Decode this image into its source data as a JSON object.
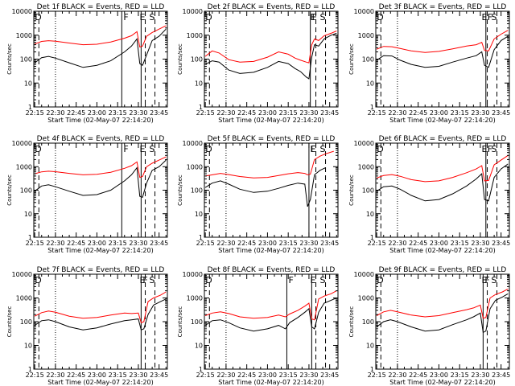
{
  "figure": {
    "xlabel": "Start Time (02-May-07 22:14:20)",
    "ylabel": "Counts/sec",
    "y_scale": "log",
    "ylim": [
      1,
      10000
    ],
    "xlim": [
      "22:14:20",
      "23:51:00"
    ],
    "x_ticks": [
      "22:15",
      "22:30",
      "22:45",
      "23:00",
      "23:15",
      "23:30",
      "23:45"
    ],
    "y_ticks": [
      "1",
      "10",
      "100",
      "1000",
      "10000"
    ],
    "colors": {
      "events": "#000000",
      "lld": "#ff0000"
    },
    "time_markers": {
      "dashed_times": [
        "22:18",
        "23:35",
        "23:42"
      ],
      "dotted_time": "22:30",
      "letters_top": [
        "F",
        "E",
        "S"
      ],
      "letter_bottom": "D"
    }
  },
  "chart_data": [
    {
      "type": "line",
      "title": "Det 1f BLACK = Events, RED = LLD",
      "solid_times": [
        "23:18",
        "23:32"
      ],
      "events_x": [
        "22:15",
        "22:20",
        "22:25",
        "22:30",
        "22:40",
        "22:50",
        "23:00",
        "23:10",
        "23:20",
        "23:25",
        "23:29",
        "23:31",
        "23:33",
        "23:36",
        "23:40",
        "23:45",
        "23:50"
      ],
      "events_y": [
        70,
        115,
        130,
        110,
        70,
        45,
        55,
        85,
        200,
        350,
        700,
        65,
        55,
        150,
        600,
        900,
        1800
      ],
      "lld_x": [
        "22:15",
        "22:20",
        "22:25",
        "22:30",
        "22:40",
        "22:50",
        "23:00",
        "23:10",
        "23:20",
        "23:25",
        "23:29",
        "23:31",
        "23:33",
        "23:36",
        "23:40",
        "23:45",
        "23:50"
      ],
      "lld_y": [
        430,
        550,
        590,
        560,
        470,
        400,
        420,
        520,
        750,
        950,
        1400,
        320,
        350,
        900,
        1300,
        1800,
        2500
      ]
    },
    {
      "type": "line",
      "title": "Det 2f BLACK = Events, RED = LLD",
      "solid_times": [
        "23:31"
      ],
      "events_x": [
        "22:15",
        "22:20",
        "22:25",
        "22:32",
        "22:40",
        "22:50",
        "23:00",
        "23:08",
        "23:15",
        "23:20",
        "23:24",
        "23:28",
        "23:30",
        "23:32",
        "23:34",
        "23:37",
        "23:41",
        "23:46",
        "23:50"
      ],
      "events_y": [
        60,
        85,
        75,
        35,
        25,
        28,
        45,
        80,
        65,
        40,
        30,
        18,
        15,
        120,
        400,
        350,
        700,
        1000,
        1200
      ],
      "lld_x": [
        "22:15",
        "22:20",
        "22:25",
        "22:32",
        "22:40",
        "22:50",
        "23:00",
        "23:08",
        "23:15",
        "23:20",
        "23:24",
        "23:28",
        "23:30",
        "23:32",
        "23:34",
        "23:37",
        "23:41",
        "23:46",
        "23:50"
      ],
      "lld_y": [
        130,
        220,
        180,
        95,
        75,
        80,
        120,
        200,
        160,
        110,
        90,
        75,
        70,
        400,
        700,
        600,
        950,
        1200,
        1500
      ]
    },
    {
      "type": "line",
      "title": "Det 3f BLACK = Events, RED = LLD",
      "solid_times": [
        "23:34"
      ],
      "events_x": [
        "22:15",
        "22:20",
        "22:26",
        "22:32",
        "22:40",
        "22:50",
        "23:00",
        "23:10",
        "23:20",
        "23:27",
        "23:31",
        "23:33",
        "23:36",
        "23:40",
        "23:45",
        "23:50"
      ],
      "events_y": [
        90,
        140,
        135,
        90,
        60,
        45,
        50,
        75,
        110,
        140,
        200,
        55,
        45,
        250,
        600,
        900
      ],
      "lld_x": [
        "22:15",
        "22:20",
        "22:26",
        "22:32",
        "22:40",
        "22:50",
        "23:00",
        "23:10",
        "23:20",
        "23:27",
        "23:31",
        "23:33",
        "23:36",
        "23:40",
        "23:45",
        "23:50"
      ],
      "lld_y": [
        260,
        340,
        330,
        280,
        220,
        190,
        210,
        270,
        350,
        400,
        500,
        230,
        220,
        700,
        1100,
        1600
      ]
    },
    {
      "type": "line",
      "title": "Det 4f BLACK = Events, RED = LLD",
      "solid_times": [
        "23:18",
        "23:32"
      ],
      "events_x": [
        "22:15",
        "22:20",
        "22:25",
        "22:30",
        "22:40",
        "22:50",
        "23:00",
        "23:10",
        "23:20",
        "23:25",
        "23:29",
        "23:31",
        "23:33",
        "23:36",
        "23:40",
        "23:45",
        "23:50"
      ],
      "events_y": [
        90,
        150,
        170,
        140,
        90,
        60,
        65,
        100,
        250,
        450,
        900,
        55,
        50,
        200,
        700,
        1000,
        1900
      ],
      "lld_x": [
        "22:15",
        "22:20",
        "22:25",
        "22:30",
        "22:40",
        "22:50",
        "23:00",
        "23:10",
        "23:20",
        "23:25",
        "23:29",
        "23:31",
        "23:33",
        "23:36",
        "23:40",
        "23:45",
        "23:50"
      ],
      "lld_y": [
        500,
        600,
        640,
        610,
        520,
        450,
        470,
        580,
        850,
        1100,
        1600,
        350,
        380,
        1000,
        1400,
        1900,
        2600
      ]
    },
    {
      "type": "line",
      "title": "Det 5f BLACK = Events, RED = LLD",
      "solid_times": [
        "23:30"
      ],
      "events_x": [
        "22:15",
        "22:20",
        "22:26",
        "22:32",
        "22:40",
        "22:50",
        "23:00",
        "23:08",
        "23:15",
        "23:22",
        "23:27",
        "23:29",
        "23:31",
        "23:34",
        "23:38",
        "23:42"
      ],
      "events_y": [
        130,
        200,
        250,
        180,
        110,
        80,
        90,
        120,
        160,
        200,
        180,
        20,
        40,
        450,
        700,
        900
      ],
      "lld_x": [
        "22:15",
        "22:20",
        "22:26",
        "22:32",
        "22:40",
        "22:50",
        "23:00",
        "23:08",
        "23:15",
        "23:22",
        "23:27",
        "23:29",
        "23:31",
        "23:34",
        "23:38",
        "23:42",
        "23:48"
      ],
      "lld_y": [
        400,
        450,
        520,
        460,
        380,
        330,
        350,
        420,
        500,
        560,
        520,
        450,
        480,
        2000,
        2800,
        3500,
        4500
      ]
    },
    {
      "type": "line",
      "title": "Det 6f BLACK = Events, RED = LLD",
      "solid_times": [
        "23:34"
      ],
      "events_x": [
        "22:15",
        "22:20",
        "22:26",
        "22:32",
        "22:40",
        "22:50",
        "23:00",
        "23:10",
        "23:20",
        "23:27",
        "23:31",
        "23:33",
        "23:36",
        "23:40",
        "23:45",
        "23:50"
      ],
      "events_y": [
        90,
        140,
        150,
        110,
        60,
        35,
        40,
        70,
        150,
        300,
        500,
        40,
        35,
        350,
        800,
        1300
      ],
      "lld_x": [
        "22:15",
        "22:20",
        "22:26",
        "22:32",
        "22:40",
        "22:50",
        "23:00",
        "23:10",
        "23:20",
        "23:27",
        "23:31",
        "23:33",
        "23:36",
        "23:40",
        "23:45",
        "23:50"
      ],
      "lld_y": [
        330,
        420,
        460,
        390,
        280,
        230,
        250,
        350,
        550,
        800,
        1100,
        250,
        260,
        1200,
        1900,
        3000
      ]
    },
    {
      "type": "line",
      "title": "Det 7f BLACK = Events, RED = LLD",
      "solid_times": [
        "23:32"
      ],
      "events_x": [
        "22:15",
        "22:20",
        "22:25",
        "22:30",
        "22:40",
        "22:50",
        "23:00",
        "23:10",
        "23:20",
        "23:25",
        "23:30",
        "23:32",
        "23:34",
        "23:37",
        "23:41",
        "23:46",
        "23:50"
      ],
      "events_y": [
        70,
        110,
        120,
        100,
        60,
        45,
        55,
        80,
        110,
        120,
        130,
        45,
        50,
        200,
        500,
        700,
        900
      ],
      "lld_x": [
        "22:15",
        "22:20",
        "22:25",
        "22:30",
        "22:40",
        "22:50",
        "23:00",
        "23:10",
        "23:20",
        "23:25",
        "23:30",
        "23:32",
        "23:34",
        "23:37",
        "23:41",
        "23:46",
        "23:50"
      ],
      "lld_y": [
        170,
        240,
        280,
        250,
        170,
        140,
        150,
        190,
        230,
        220,
        230,
        90,
        100,
        700,
        1000,
        1300,
        1800
      ]
    },
    {
      "type": "line",
      "title": "Det 8f BLACK = Events, RED = LLD",
      "solid_times": [
        "23:14",
        "23:32"
      ],
      "events_x": [
        "22:15",
        "22:20",
        "22:26",
        "22:32",
        "22:40",
        "22:50",
        "23:00",
        "23:08",
        "23:13",
        "23:16",
        "23:22",
        "23:27",
        "23:30",
        "23:32",
        "23:34",
        "23:37",
        "23:41",
        "23:46",
        "23:50"
      ],
      "events_y": [
        70,
        110,
        120,
        90,
        55,
        40,
        50,
        70,
        50,
        90,
        150,
        250,
        350,
        60,
        50,
        250,
        600,
        800,
        1000
      ],
      "lld_x": [
        "22:15",
        "22:20",
        "22:26",
        "22:32",
        "22:40",
        "22:50",
        "23:00",
        "23:08",
        "23:13",
        "23:16",
        "23:22",
        "23:27",
        "23:30",
        "23:32",
        "23:34",
        "23:37",
        "23:41",
        "23:46",
        "23:50"
      ],
      "lld_y": [
        180,
        230,
        260,
        220,
        160,
        140,
        150,
        190,
        160,
        210,
        300,
        450,
        600,
        130,
        120,
        900,
        1200,
        1500,
        2000
      ]
    },
    {
      "type": "line",
      "title": "Det 9f BLACK = Events, RED = LLD",
      "solid_times": [
        "23:32"
      ],
      "events_x": [
        "22:15",
        "22:20",
        "22:25",
        "22:30",
        "22:40",
        "22:50",
        "23:00",
        "23:10",
        "23:20",
        "23:25",
        "23:30",
        "23:32",
        "23:34",
        "23:37",
        "23:41",
        "23:46",
        "23:50"
      ],
      "events_y": [
        60,
        100,
        120,
        100,
        60,
        40,
        45,
        75,
        120,
        160,
        230,
        35,
        40,
        350,
        800,
        1100,
        1500
      ],
      "lld_x": [
        "22:15",
        "22:20",
        "22:25",
        "22:30",
        "22:40",
        "22:50",
        "23:00",
        "23:10",
        "23:20",
        "23:25",
        "23:30",
        "23:32",
        "23:34",
        "23:37",
        "23:41",
        "23:46",
        "23:50"
      ],
      "lld_y": [
        180,
        260,
        300,
        260,
        190,
        160,
        180,
        240,
        320,
        380,
        500,
        140,
        150,
        1000,
        1400,
        1800,
        2400
      ]
    }
  ]
}
